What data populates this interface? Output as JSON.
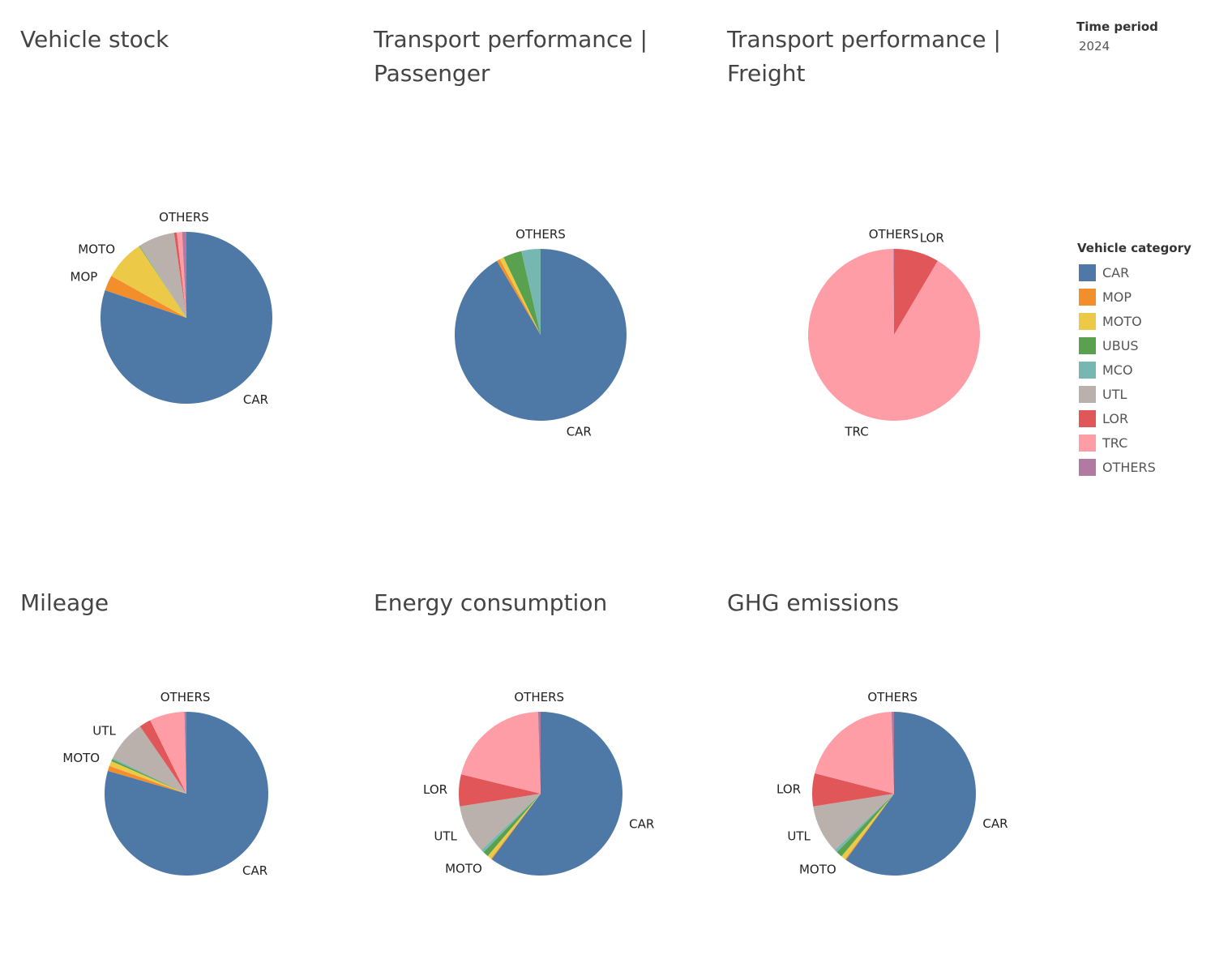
{
  "filter": {
    "title": "Time period",
    "value": "2024"
  },
  "legend": {
    "title": "Vehicle category",
    "items": [
      {
        "label": "CAR",
        "color": "#4e79a7"
      },
      {
        "label": "MOP",
        "color": "#f28e2b"
      },
      {
        "label": "MOTO",
        "color": "#edc948"
      },
      {
        "label": "UBUS",
        "color": "#59a14f"
      },
      {
        "label": "MCO",
        "color": "#76b7b2"
      },
      {
        "label": "UTL",
        "color": "#bab0ac"
      },
      {
        "label": "LOR",
        "color": "#e15759"
      },
      {
        "label": "TRC",
        "color": "#ff9da7"
      },
      {
        "label": "OTHERS",
        "color": "#b07aa1"
      }
    ]
  },
  "chart_data": [
    {
      "type": "pie",
      "title": "Vehicle stock",
      "categories": [
        "CAR",
        "MOP",
        "MOTO",
        "UBUS",
        "MCO",
        "UTL",
        "LOR",
        "TRC",
        "OTHERS"
      ],
      "values": [
        80.2,
        2.9,
        7.6,
        0.1,
        0.1,
        6.8,
        0.5,
        1.0,
        0.8
      ],
      "labels": [
        "CAR",
        "MOP",
        "MOTO",
        "",
        "",
        "",
        "",
        "",
        "OTHERS"
      ]
    },
    {
      "type": "pie",
      "title": "Transport performance | Passenger",
      "categories": [
        "CAR",
        "MOP",
        "MOTO",
        "UBUS",
        "MCO",
        "UTL",
        "LOR",
        "TRC",
        "OTHERS"
      ],
      "values": [
        91.5,
        0.6,
        0.8,
        3.5,
        3.6,
        0,
        0,
        0,
        0
      ],
      "labels": [
        "CAR",
        "",
        "",
        "",
        "",
        "",
        "",
        "",
        "OTHERS"
      ]
    },
    {
      "type": "pie",
      "title": "Transport performance | Freight",
      "categories": [
        "CAR",
        "MOP",
        "MOTO",
        "UBUS",
        "MCO",
        "UTL",
        "LOR",
        "TRC",
        "OTHERS"
      ],
      "values": [
        0,
        0,
        0,
        0,
        0,
        0,
        8.5,
        91.4,
        0.1
      ],
      "labels": [
        "",
        "",
        "",
        "",
        "",
        "",
        "LOR",
        "TRC",
        "OTHERS"
      ]
    },
    {
      "type": "pie",
      "title": "Mileage",
      "categories": [
        "CAR",
        "MOP",
        "MOTO",
        "UBUS",
        "MCO",
        "UTL",
        "LOR",
        "TRC",
        "OTHERS"
      ],
      "values": [
        79.5,
        1.0,
        1.0,
        0.4,
        0.3,
        8.2,
        2.3,
        6.9,
        0.4
      ],
      "labels": [
        "CAR",
        "",
        "MOTO",
        "",
        "",
        "UTL",
        "",
        "",
        "OTHERS"
      ]
    },
    {
      "type": "pie",
      "title": "Energy consumption",
      "categories": [
        "CAR",
        "MOP",
        "MOTO",
        "UBUS",
        "MCO",
        "UTL",
        "LOR",
        "TRC",
        "OTHERS"
      ],
      "values": [
        60.2,
        0.2,
        0.8,
        1.1,
        0.6,
        9.6,
        6.3,
        20.7,
        0.5
      ],
      "labels": [
        "CAR",
        "",
        "MOTO",
        "",
        "",
        "UTL",
        "LOR",
        "",
        "OTHERS"
      ]
    },
    {
      "type": "pie",
      "title": "GHG emissions",
      "categories": [
        "CAR",
        "MOP",
        "MOTO",
        "UBUS",
        "MCO",
        "UTL",
        "LOR",
        "TRC",
        "OTHERS"
      ],
      "values": [
        60.0,
        0.2,
        0.9,
        1.2,
        0.6,
        9.6,
        6.5,
        20.5,
        0.5
      ],
      "labels": [
        "CAR",
        "",
        "MOTO",
        "",
        "",
        "UTL",
        "LOR",
        "",
        "OTHERS"
      ]
    }
  ]
}
